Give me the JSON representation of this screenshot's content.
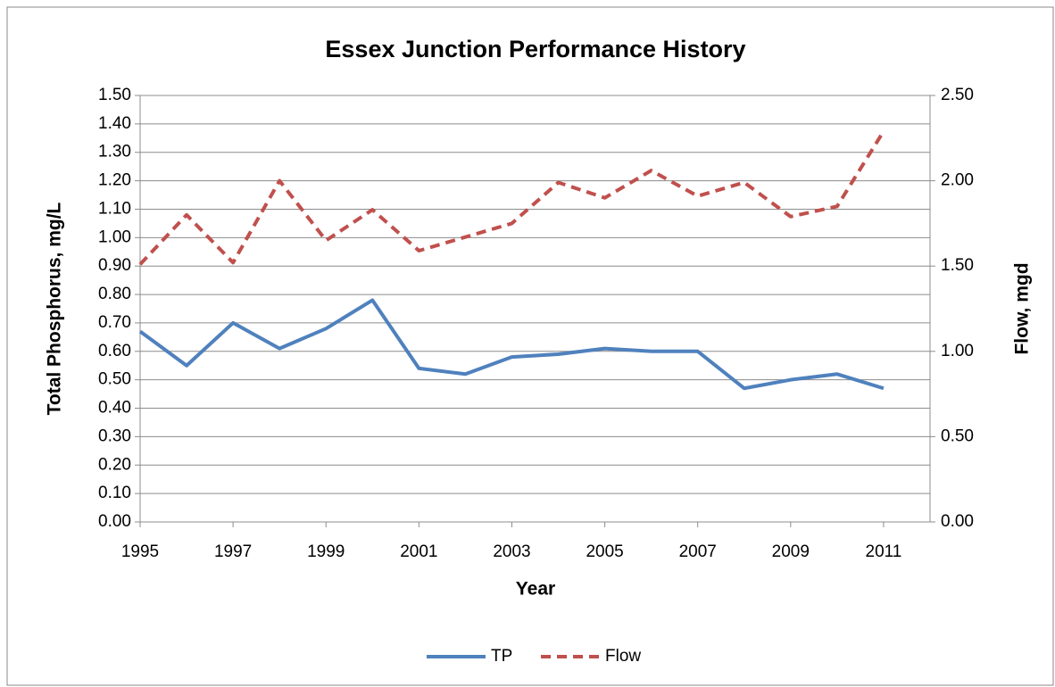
{
  "chart_data": {
    "type": "line",
    "title": "Essex Junction Performance History",
    "xlabel": "Year",
    "ylabel": "Total Phosphorus, mg/L",
    "y2label": "Flow, mgd",
    "x": [
      1995,
      1996,
      1997,
      1998,
      1999,
      2000,
      2001,
      2002,
      2003,
      2004,
      2005,
      2006,
      2007,
      2008,
      2009,
      2010,
      2011
    ],
    "xlim": [
      1995,
      2012
    ],
    "xticks": [
      1995,
      1997,
      1999,
      2001,
      2003,
      2005,
      2007,
      2009,
      2011
    ],
    "ylim": [
      0,
      1.5
    ],
    "yticks": [
      {
        "value": 0,
        "label": "0.00"
      },
      {
        "value": 0.1,
        "label": "0.10"
      },
      {
        "value": 0.2,
        "label": "0.20"
      },
      {
        "value": 0.3,
        "label": "0.30"
      },
      {
        "value": 0.4,
        "label": "0.40"
      },
      {
        "value": 0.5,
        "label": "0.50"
      },
      {
        "value": 0.6,
        "label": "0.60"
      },
      {
        "value": 0.7,
        "label": "0.70"
      },
      {
        "value": 0.8,
        "label": "0.80"
      },
      {
        "value": 0.9,
        "label": "0.90"
      },
      {
        "value": 1.0,
        "label": "1.00"
      },
      {
        "value": 1.1,
        "label": "1.10"
      },
      {
        "value": 1.2,
        "label": "1.20"
      },
      {
        "value": 1.3,
        "label": "1.30"
      },
      {
        "value": 1.4,
        "label": "1.40"
      },
      {
        "value": 1.5,
        "label": "1.50"
      }
    ],
    "y2lim": [
      0,
      2.5
    ],
    "y2ticks": [
      {
        "value": 0,
        "label": "0.00"
      },
      {
        "value": 0.5,
        "label": "0.50"
      },
      {
        "value": 1.0,
        "label": "1.00"
      },
      {
        "value": 1.5,
        "label": "1.50"
      },
      {
        "value": 2.0,
        "label": "2.00"
      },
      {
        "value": 2.5,
        "label": "2.50"
      }
    ],
    "grid": true,
    "legend": "bottom",
    "series": [
      {
        "name": "TP",
        "color": "#4f81bd",
        "dash": false,
        "values": [
          0.67,
          0.55,
          0.7,
          0.61,
          0.68,
          0.78,
          0.54,
          0.52,
          0.58,
          0.59,
          0.61,
          0.6,
          0.6,
          0.47,
          0.5,
          0.52,
          0.47
        ]
      },
      {
        "name": "Flow",
        "color": "#c0504d",
        "dash": true,
        "axis": "y2",
        "values": [
          1.51,
          1.8,
          1.52,
          2.0,
          1.65,
          1.83,
          1.59,
          1.67,
          1.75,
          1.99,
          1.9,
          2.06,
          1.91,
          1.99,
          1.79,
          1.85,
          2.29
        ]
      }
    ]
  }
}
